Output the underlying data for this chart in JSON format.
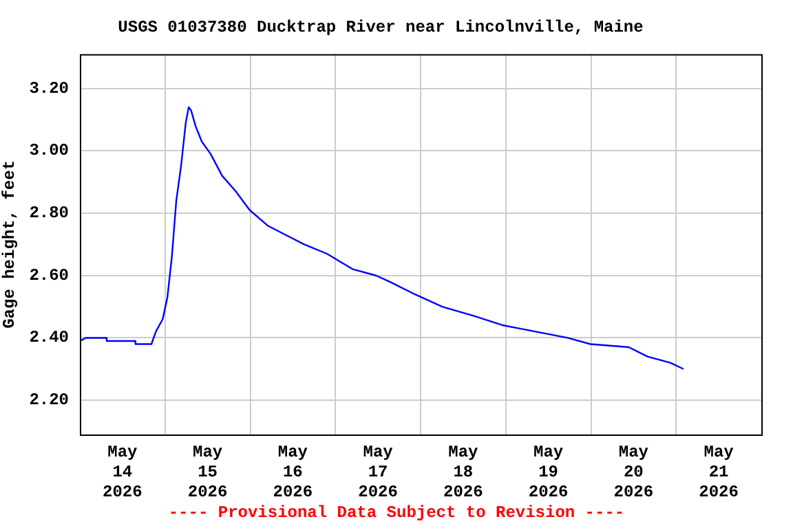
{
  "chart_data": {
    "type": "line",
    "title": "USGS 01037380 Ducktrap River near Lincolnville, Maine",
    "ylabel": "Gage height, feet",
    "x": [
      "2026-05-14T00:00",
      "2026-05-14T01:45",
      "2026-05-14T07:30",
      "2026-05-14T07:35",
      "2026-05-14T15:35",
      "2026-05-14T15:40",
      "2026-05-14T20:10",
      "2026-05-14T21:25",
      "2026-05-14T23:20",
      "2026-05-15T00:40",
      "2026-05-15T01:55",
      "2026-05-15T03:10",
      "2026-05-15T04:30",
      "2026-05-15T05:50",
      "2026-05-15T06:40",
      "2026-05-15T07:20",
      "2026-05-15T08:35",
      "2026-05-15T10:20",
      "2026-05-15T12:50",
      "2026-05-15T16:05",
      "2026-05-15T19:55",
      "2026-05-15T23:50",
      "2026-05-16T04:55",
      "2026-05-16T10:00",
      "2026-05-16T15:10",
      "2026-05-16T21:35",
      "2026-05-17T04:55",
      "2026-05-17T11:25",
      "2026-05-17T15:20",
      "2026-05-17T22:20",
      "2026-05-18T06:05",
      "2026-05-18T15:05",
      "2026-05-18T23:20",
      "2026-05-19T08:25",
      "2026-05-19T17:25",
      "2026-05-19T23:50",
      "2026-05-20T10:40",
      "2026-05-20T15:55",
      "2026-05-20T22:20",
      "2026-05-21T02:05"
    ],
    "series": [
      {
        "color": "#0000ff",
        "values": [
          2.39,
          2.4,
          2.4,
          2.39,
          2.39,
          2.38,
          2.38,
          2.42,
          2.46,
          2.53,
          2.66,
          2.84,
          2.95,
          3.09,
          3.14,
          3.13,
          3.08,
          3.03,
          2.99,
          2.92,
          2.87,
          2.81,
          2.76,
          2.73,
          2.7,
          2.67,
          2.62,
          2.6,
          2.58,
          2.54,
          2.5,
          2.47,
          2.44,
          2.42,
          2.4,
          2.38,
          2.37,
          2.34,
          2.32,
          2.3
        ]
      }
    ],
    "xlim": [
      "2026-05-14T00:00",
      "2026-05-22T00:00"
    ],
    "xticks": [
      {
        "value": "2026-05-14T12:00",
        "label": "May\n14\n2026"
      },
      {
        "value": "2026-05-15T00:00",
        "label": null
      },
      {
        "value": "2026-05-15T12:00",
        "label": "May\n15\n2026"
      },
      {
        "value": "2026-05-16T00:00",
        "label": null
      },
      {
        "value": "2026-05-16T12:00",
        "label": "May\n16\n2026"
      },
      {
        "value": "2026-05-17T00:00",
        "label": null
      },
      {
        "value": "2026-05-17T12:00",
        "label": "May\n17\n2026"
      },
      {
        "value": "2026-05-18T00:00",
        "label": null
      },
      {
        "value": "2026-05-18T12:00",
        "label": "May\n18\n2026"
      },
      {
        "value": "2026-05-19T00:00",
        "label": null
      },
      {
        "value": "2026-05-19T12:00",
        "label": "May\n19\n2026"
      },
      {
        "value": "2026-05-20T00:00",
        "label": null
      },
      {
        "value": "2026-05-20T12:00",
        "label": "May\n20\n2026"
      },
      {
        "value": "2026-05-21T00:00",
        "label": null
      },
      {
        "value": "2026-05-21T12:00",
        "label": "May\n21\n2026"
      }
    ],
    "ylim": [
      2.09,
      3.31
    ],
    "yticks": [
      {
        "value": 2.2,
        "label": "2.20"
      },
      {
        "value": 2.4,
        "label": "2.40"
      },
      {
        "value": 2.6,
        "label": "2.60"
      },
      {
        "value": 2.8,
        "label": "2.80"
      },
      {
        "value": 3.0,
        "label": "3.00"
      },
      {
        "value": 3.2,
        "label": "3.20"
      }
    ],
    "grid": true,
    "legend": false,
    "marker": "none",
    "line_style": "solid",
    "annotations": [
      "---- Provisional Data Subject to Revision ----"
    ]
  }
}
